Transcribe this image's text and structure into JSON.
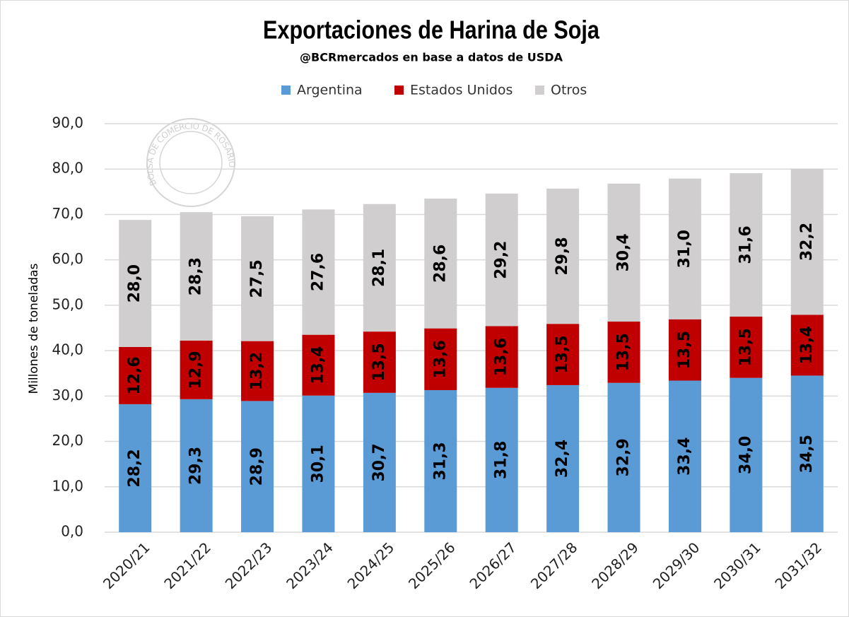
{
  "chart_data": {
    "type": "stacked_bar",
    "title": "Exportaciones de Harina de Soja",
    "subtitle": "@BCRmercados en base a datos de USDA",
    "watermark": "BOLSA DE COMERCIO DE ROSARIO",
    "y_label": "Millones de toneladas",
    "categories": [
      "2020/21",
      "2021/22",
      "2022/23",
      "2023/24",
      "2024/25",
      "2025/26",
      "2026/27",
      "2027/28",
      "2028/29",
      "2029/30",
      "2030/31",
      "2031/32"
    ],
    "series": [
      {
        "name": "Argentina",
        "color": "#5b9bd5",
        "values": [
          28.2,
          29.3,
          28.9,
          30.1,
          30.7,
          31.3,
          31.8,
          32.4,
          32.9,
          33.4,
          34.0,
          34.5
        ],
        "value_labels": [
          "28,2",
          "29,3",
          "28,9",
          "30,1",
          "30,7",
          "31,3",
          "31,8",
          "32,4",
          "32,9",
          "33,4",
          "34,0",
          "34,5"
        ]
      },
      {
        "name": "Estados Unidos",
        "color": "#c00000",
        "values": [
          12.6,
          12.9,
          13.2,
          13.4,
          13.5,
          13.6,
          13.6,
          13.5,
          13.5,
          13.5,
          13.5,
          13.4
        ],
        "value_labels": [
          "12,6",
          "12,9",
          "13,2",
          "13,4",
          "13,5",
          "13,6",
          "13,6",
          "13,5",
          "13,5",
          "13,5",
          "13,5",
          "13,4"
        ]
      },
      {
        "name": "Otros",
        "color": "#d0cece",
        "values": [
          28.0,
          28.3,
          27.5,
          27.6,
          28.1,
          28.6,
          29.2,
          29.8,
          30.4,
          31.0,
          31.6,
          32.2
        ],
        "value_labels": [
          "28,0",
          "28,3",
          "27,5",
          "27,6",
          "28,1",
          "28,6",
          "29,2",
          "29,8",
          "30,4",
          "31,0",
          "31,6",
          "32,2"
        ]
      }
    ],
    "ylim": [
      0,
      90
    ],
    "yticks": [
      {
        "value": 0,
        "label": "0,0"
      },
      {
        "value": 10,
        "label": "10,0"
      },
      {
        "value": 20,
        "label": "20,0"
      },
      {
        "value": 30,
        "label": "30,0"
      },
      {
        "value": 40,
        "label": "40,0"
      },
      {
        "value": 50,
        "label": "50,0"
      },
      {
        "value": 60,
        "label": "60,0"
      },
      {
        "value": 70,
        "label": "70,0"
      },
      {
        "value": 80,
        "label": "80,0"
      },
      {
        "value": 90,
        "label": "90,0"
      }
    ],
    "grid": true,
    "legend": "top"
  }
}
